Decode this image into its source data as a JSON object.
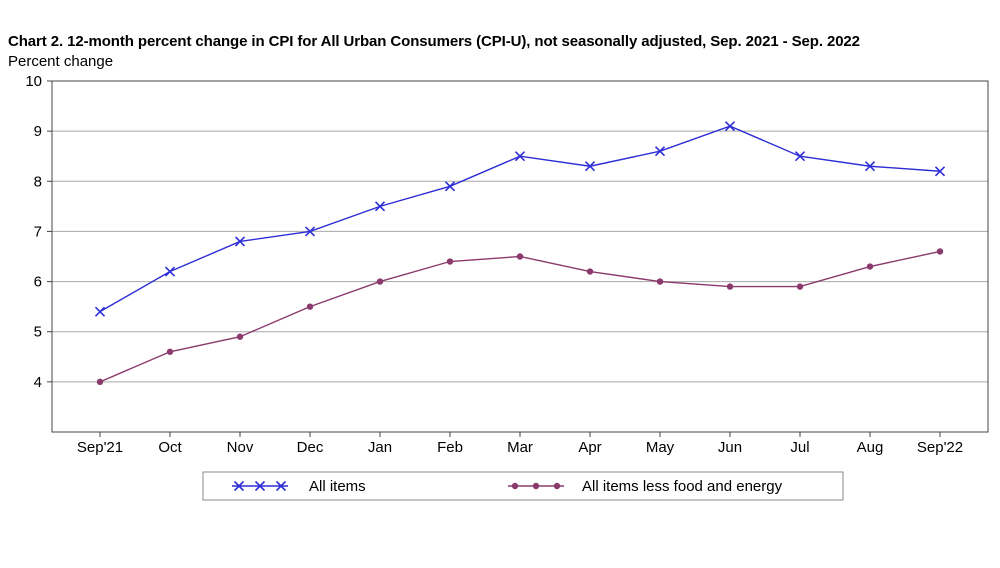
{
  "chart_data": {
    "type": "line",
    "title": "Chart 2. 12-month percent change in CPI for All Urban Consumers (CPI-U), not seasonally adjusted, Sep. 2021 - Sep. 2022",
    "ylabel": "Percent change",
    "xlabel": "",
    "categories": [
      "Sep'21",
      "Oct",
      "Nov",
      "Dec",
      "Jan",
      "Feb",
      "Mar",
      "Apr",
      "May",
      "Jun",
      "Jul",
      "Aug",
      "Sep'22"
    ],
    "ylim": [
      3,
      10
    ],
    "yticks": [
      4,
      5,
      6,
      7,
      8,
      9,
      10
    ],
    "grid": true,
    "legend_position": "bottom",
    "series": [
      {
        "name": "All items",
        "marker": "x",
        "color": "#2E2ED6",
        "values": [
          5.4,
          6.2,
          6.8,
          7.0,
          7.5,
          7.9,
          8.5,
          8.3,
          8.6,
          9.1,
          8.5,
          8.3,
          8.2
        ]
      },
      {
        "name": "All items less food and energy",
        "marker": "dot",
        "color": "#8B3A6E",
        "values": [
          4.0,
          4.6,
          4.9,
          5.5,
          6.0,
          6.4,
          6.5,
          6.2,
          6.0,
          5.9,
          5.9,
          6.3,
          6.6
        ]
      }
    ]
  }
}
